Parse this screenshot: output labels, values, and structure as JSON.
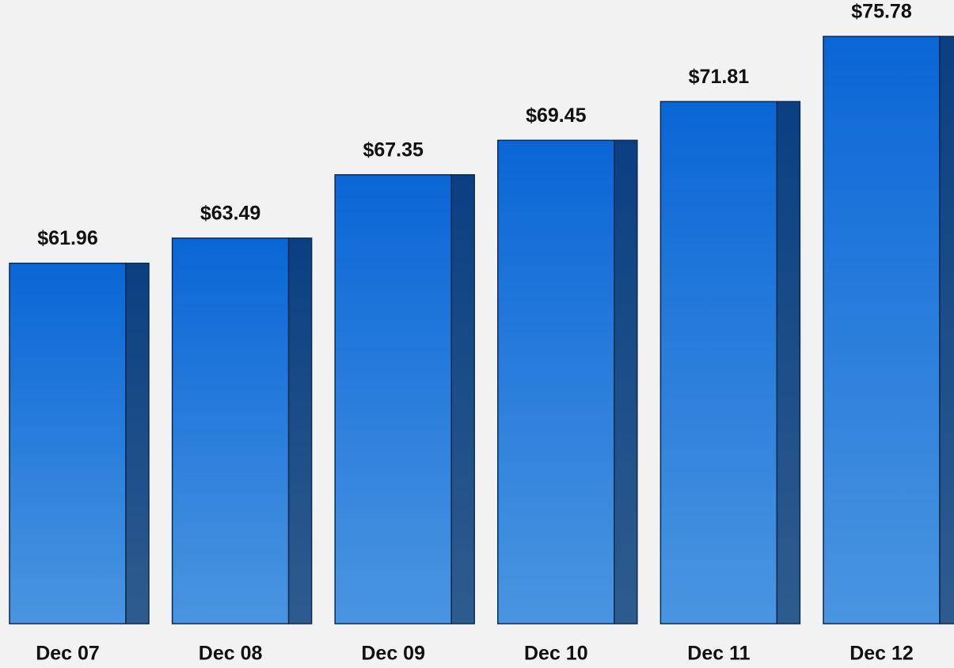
{
  "chart_data": {
    "type": "bar",
    "categories": [
      "Dec 07",
      "Dec 08",
      "Dec 09",
      "Dec 10",
      "Dec 11",
      "Dec 12"
    ],
    "values": [
      61.96,
      63.49,
      67.35,
      69.45,
      71.81,
      75.78
    ],
    "value_labels": [
      "$61.96",
      "$63.49",
      "$67.35",
      "$69.45",
      "$71.81",
      "$75.78"
    ],
    "color": "#1a6fd8",
    "ylim": [
      40,
      78
    ],
    "grid": false
  }
}
